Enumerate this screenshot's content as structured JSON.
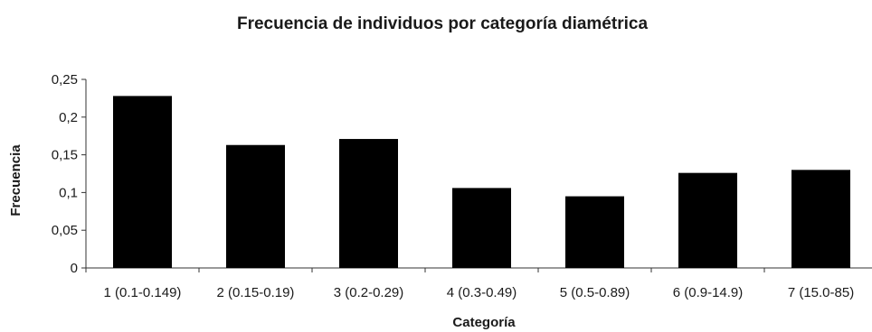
{
  "chart_data": {
    "type": "bar",
    "title": "Frecuencia de individuos por categoría diamétrica",
    "xlabel": "Categoría",
    "ylabel": "Frecuencia",
    "categories": [
      "1 (0.1-0.149)",
      "2 (0.15-0.19)",
      "3 (0.2-0.29)",
      "4 (0.3-0.49)",
      "5 (0.5-0.89)",
      "6 (0.9-14.9)",
      "7 (15.0-85)"
    ],
    "values": [
      0.228,
      0.163,
      0.171,
      0.106,
      0.095,
      0.126,
      0.13
    ],
    "ylim": [
      0,
      0.25
    ],
    "yticks": [
      0,
      0.05,
      0.1,
      0.15,
      0.2,
      0.25
    ],
    "ytick_labels": [
      "0",
      "0,05",
      "0,1",
      "0,15",
      "0,2",
      "0,25"
    ],
    "grid": false,
    "legend": "none",
    "bar_color": "#000000"
  }
}
